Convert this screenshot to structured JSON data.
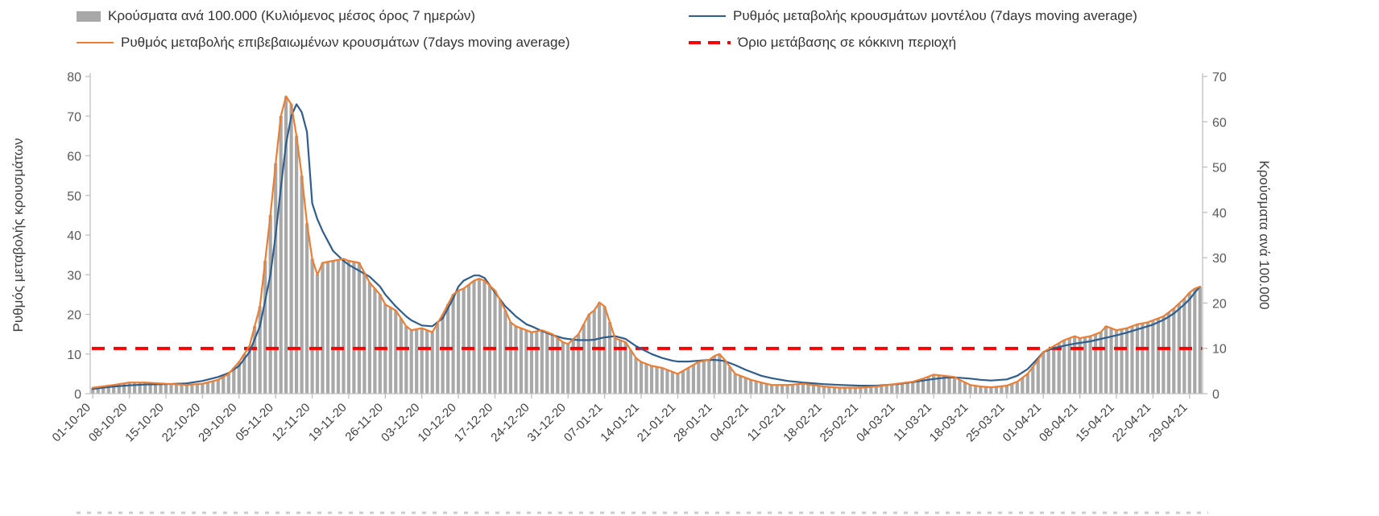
{
  "accent_colors": {
    "bar_gray": "#a8a8a8",
    "model_blue": "#2e5e8e",
    "confirmed_orange": "#ed7d31",
    "threshold_red": "#ff0000",
    "axis_gray": "#bfbfbf"
  },
  "legend": {
    "items": [
      {
        "label": "Κρούσματα ανά 100.000 (Κυλιόμενος μέσος όρος 7 ημερών)",
        "swatch": "bar",
        "color": "#a8a8a8"
      },
      {
        "label": "Ρυθμός μεταβολής κρουσμάτων μοντέλου (7days moving average)",
        "swatch": "line",
        "color": "#2e5e8e"
      },
      {
        "label": "Ρυθμός μεταβολής επιβεβαιωμένων κρουσμάτων (7days moving average)",
        "swatch": "line",
        "color": "#ed7d31"
      },
      {
        "label": "Όριο μετάβασης σε κόκκινη περιοχή",
        "swatch": "dash",
        "color": "#ff0000"
      }
    ]
  },
  "chart_data": {
    "type": "bar+line combo",
    "title": "",
    "grid": "off",
    "legend_position": "top",
    "days_total": 213,
    "left_axis": {
      "label": "Ρυθμός μεταβολής κρουσμάτων",
      "min": 0,
      "max": 80,
      "step": 10
    },
    "right_axis": {
      "label": "Κρούσματα ανά 100.000",
      "min": 0,
      "max": 70,
      "step": 10
    },
    "x_axis": {
      "tick_spacing_days": 7,
      "tick_labels": [
        "01-10-20",
        "08-10-20",
        "15-10-20",
        "22-10-20",
        "29-10-20",
        "05-11-20",
        "12-11-20",
        "19-11-20",
        "26-11-20",
        "03-12-20",
        "10-12-20",
        "17-12-20",
        "24-12-20",
        "31-12-20",
        "07-01-21",
        "14-01-21",
        "21-01-21",
        "28-01-21",
        "04-02-21",
        "11-02-21",
        "18-02-21",
        "25-02-21",
        "04-03-21",
        "11-03-21",
        "18-03-21",
        "25-03-21",
        "01-04-21",
        "08-04-21",
        "15-04-21",
        "22-04-21",
        "29-04-21"
      ]
    },
    "threshold": {
      "label": "Όριο μετάβασης σε κόκκινη περιοχή",
      "value_right_axis": 10,
      "value_left_axis": 11.4,
      "color": "#ff0000"
    },
    "sample_days": [
      0,
      4,
      7,
      10,
      14,
      18,
      21,
      24,
      26,
      28,
      30,
      32,
      34,
      35,
      36,
      37,
      38,
      39,
      40,
      41,
      42,
      43,
      44,
      46,
      48,
      49,
      51,
      53,
      55,
      56,
      58,
      60,
      61,
      63,
      65,
      67,
      69,
      70,
      71,
      73,
      74,
      75,
      77,
      79,
      80,
      81,
      83,
      84,
      86,
      88,
      90,
      91,
      93,
      95,
      96,
      97,
      98,
      100,
      102,
      104,
      105,
      107,
      109,
      111,
      112,
      114,
      116,
      118,
      119,
      120,
      121,
      123,
      125,
      126,
      128,
      130,
      133,
      136,
      140,
      143,
      147,
      150,
      154,
      157,
      159,
      161,
      163,
      165,
      166,
      168,
      170,
      172,
      175,
      177,
      179,
      181,
      182,
      184,
      186,
      188,
      189,
      191,
      193,
      194,
      196,
      198,
      200,
      202,
      203,
      205,
      207,
      209,
      210,
      211,
      212
    ],
    "series": [
      {
        "name": "Κρούσματα ανά 100.000 (Κυλιόμενος μέσος όρος 7 ημερών)",
        "type": "bar",
        "axis": "right",
        "color": "#a8a8a8",
        "values": [
          1.3,
          1.9,
          2.5,
          2.5,
          2.2,
          1.9,
          2.2,
          3.1,
          4.4,
          7,
          10.5,
          19.3,
          39.4,
          50.8,
          61.3,
          65.6,
          63.9,
          56.9,
          48.1,
          37.6,
          29.8,
          26.3,
          28.9,
          29.3,
          29.8,
          29.3,
          28.9,
          24.5,
          21.9,
          19.7,
          18.4,
          14.9,
          14,
          14.4,
          13.6,
          17.5,
          21.9,
          22.8,
          23.2,
          24.9,
          25.4,
          24.9,
          22.8,
          18.4,
          15.8,
          14.9,
          14,
          13.6,
          14,
          13.1,
          11.4,
          10.9,
          13.1,
          17.5,
          18.4,
          20.1,
          19.3,
          12.3,
          11.4,
          7.9,
          7,
          6.1,
          5.7,
          4.8,
          4.4,
          5.7,
          7,
          7.4,
          8.3,
          8.8,
          7.4,
          4.4,
          3.5,
          3.1,
          2.5,
          1.9,
          1.9,
          2.2,
          1.6,
          1.3,
          1.3,
          1.6,
          2.2,
          2.6,
          3.3,
          4.2,
          3.9,
          3.7,
          3.1,
          1.9,
          1.6,
          1.4,
          1.8,
          2.6,
          4.4,
          7.4,
          9.2,
          10.5,
          11.8,
          12.7,
          12.3,
          12.7,
          13.6,
          14.9,
          14,
          14.4,
          15.3,
          15.8,
          16.2,
          17.1,
          18.8,
          21,
          22.3,
          23.2,
          23.6
        ]
      },
      {
        "name": "Ρυθμός μεταβολής κρουσμάτων μοντέλου (7days moving average)",
        "type": "line",
        "axis": "left",
        "color": "#2e5e8e",
        "values": [
          1.2,
          1.8,
          2.1,
          2.3,
          2.4,
          2.6,
          3.2,
          4.2,
          5.2,
          7,
          10.5,
          17,
          30,
          40,
          52,
          63,
          70,
          73,
          71,
          66,
          48,
          44,
          41,
          36,
          33.5,
          32.5,
          31,
          29.5,
          27,
          25,
          22,
          19.5,
          18.5,
          17.2,
          17,
          19,
          24,
          27,
          28.5,
          29.8,
          29.8,
          29.2,
          25.5,
          22,
          20.8,
          19.5,
          17.5,
          17,
          15.8,
          14.8,
          14,
          13.8,
          13.5,
          13.5,
          13.6,
          13.9,
          14.2,
          14.5,
          13.8,
          12,
          11.3,
          10,
          9,
          8.3,
          8.1,
          8.1,
          8.3,
          8.5,
          8.5,
          8.4,
          8.2,
          7.2,
          6,
          5.5,
          4.5,
          3.9,
          3.2,
          2.8,
          2.4,
          2.2,
          2,
          2,
          2.4,
          2.9,
          3.3,
          3.7,
          4,
          4.1,
          4,
          3.8,
          3.5,
          3.3,
          3.6,
          4.5,
          6.2,
          9,
          10.5,
          11.5,
          12.1,
          12.6,
          12.8,
          13.2,
          13.8,
          14.1,
          14.7,
          15.4,
          16.2,
          17,
          17.4,
          18.6,
          20.2,
          22.5,
          23.8,
          25.5,
          27
        ]
      },
      {
        "name": "Ρυθμός μεταβολής επιβεβαιωμένων κρουσμάτων (7days moving average)",
        "type": "line",
        "axis": "left",
        "color": "#ed7d31",
        "values": [
          1.5,
          2.2,
          2.8,
          2.8,
          2.5,
          2.2,
          2.5,
          3.5,
          5,
          8,
          12,
          22,
          45,
          58,
          70,
          75,
          73,
          65,
          55,
          43,
          34,
          30,
          33,
          33.5,
          34,
          33.5,
          33,
          28,
          25,
          22.5,
          21,
          17,
          16,
          16.5,
          15.5,
          20,
          25,
          26,
          26.5,
          28.5,
          29,
          28.5,
          26,
          21,
          18,
          17,
          16,
          15.5,
          16,
          15,
          13,
          12.5,
          15,
          20,
          21,
          23,
          22,
          14,
          13,
          9,
          8,
          7,
          6.5,
          5.5,
          5,
          6.5,
          8,
          8.5,
          9.5,
          10,
          8.5,
          5,
          4,
          3.5,
          2.8,
          2.2,
          2.2,
          2.5,
          1.8,
          1.5,
          1.5,
          1.8,
          2.5,
          3,
          3.8,
          4.8,
          4.5,
          4.2,
          3.5,
          2.2,
          1.8,
          1.6,
          2,
          3,
          5,
          8.5,
          10.5,
          12,
          13.5,
          14.5,
          14,
          14.5,
          15.5,
          17,
          16,
          16.5,
          17.5,
          18,
          18.5,
          19.5,
          21.5,
          24,
          25.5,
          26.5,
          27
        ]
      }
    ]
  }
}
